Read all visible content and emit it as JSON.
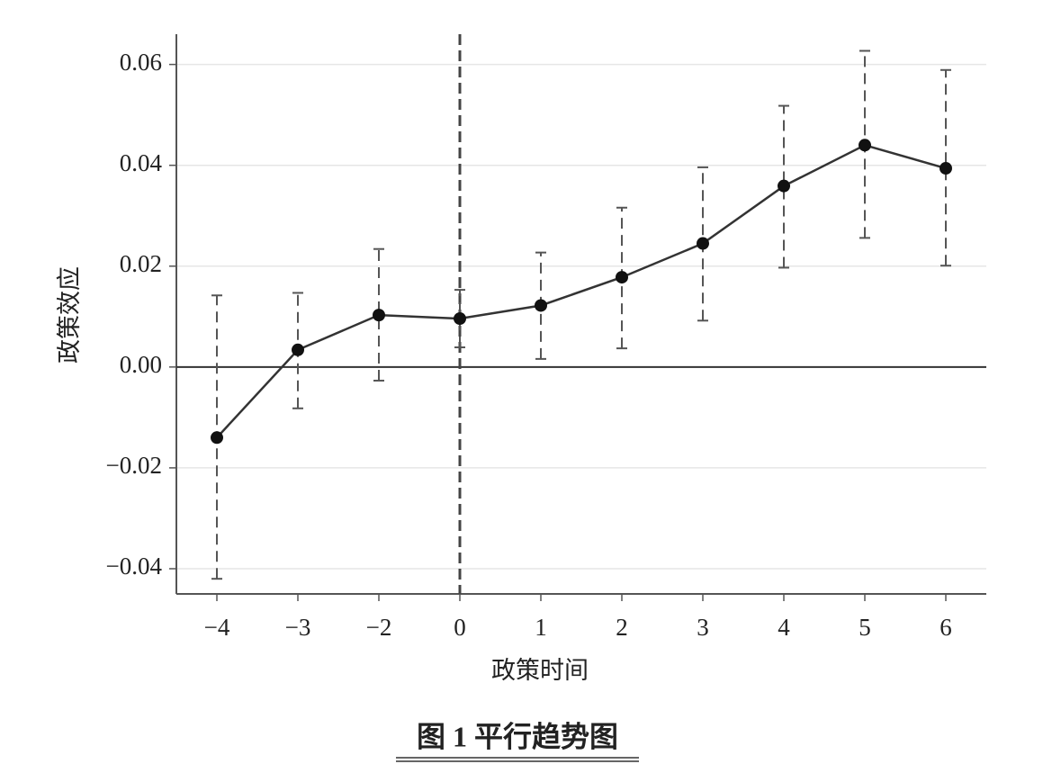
{
  "chart_data": {
    "type": "line",
    "x_label": "政策时间",
    "y_label": "政策效应",
    "caption": "图 1 平行趋势图",
    "categories": [
      "−4",
      "−3",
      "−2",
      "0",
      "1",
      "2",
      "3",
      "4",
      "5",
      "6"
    ],
    "series": [
      {
        "color": "#111111",
        "values": [
          -0.014,
          0.0034,
          0.0103,
          0.0096,
          0.0122,
          0.0178,
          0.0245,
          0.0359,
          0.044,
          0.0394
        ],
        "lower": [
          -0.042,
          -0.0082,
          -0.0027,
          0.0039,
          0.0016,
          0.0037,
          0.0092,
          0.0197,
          0.0256,
          0.0201
        ],
        "upper": [
          0.0142,
          0.0147,
          0.0234,
          0.0153,
          0.0227,
          0.0316,
          0.0396,
          0.0518,
          0.0627,
          0.0589
        ]
      }
    ],
    "ylim": [
      -0.045,
      0.066
    ],
    "yticks": [
      {
        "value": -0.04,
        "label": "−0.04"
      },
      {
        "value": -0.02,
        "label": "−0.02"
      },
      {
        "value": 0,
        "label": "0.00"
      },
      0.02,
      0.04,
      0.06
    ],
    "grid": true,
    "hline": 0,
    "vline": "0"
  }
}
